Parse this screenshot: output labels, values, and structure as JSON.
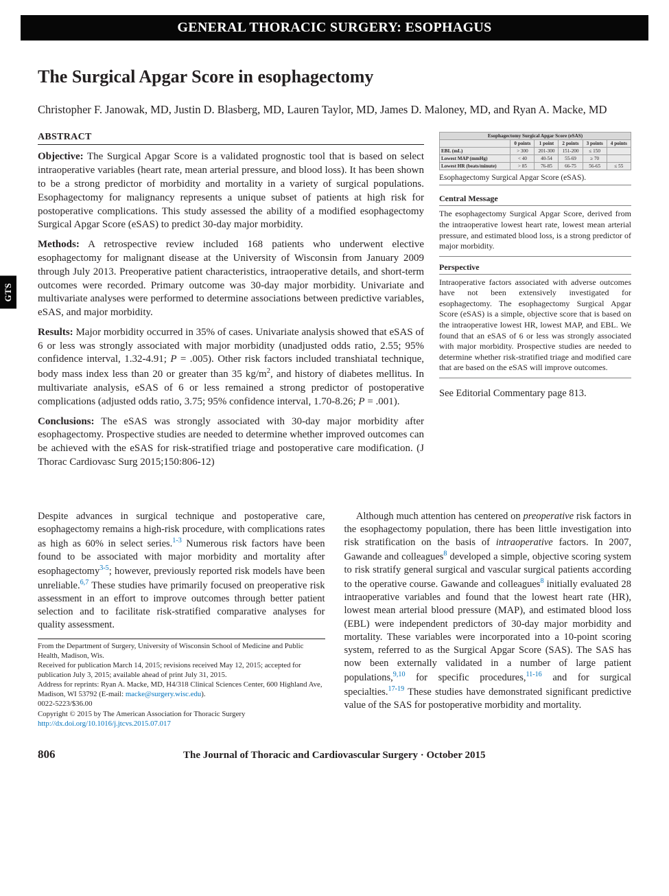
{
  "header": {
    "bar": "GENERAL THORACIC SURGERY: ESOPHAGUS",
    "side_tab": "GTS"
  },
  "title": "The Surgical Apgar Score in esophagectomy",
  "authors": "Christopher F. Janowak, MD, Justin D. Blasberg, MD, Lauren Taylor, MD, James D. Maloney, MD, and Ryan A. Macke, MD",
  "abstract": {
    "heading": "ABSTRACT",
    "objective_label": "Objective:",
    "objective": " The Surgical Apgar Score is a validated prognostic tool that is based on select intraoperative variables (heart rate, mean arterial pressure, and blood loss). It has been shown to be a strong predictor of morbidity and mortality in a variety of surgical populations. Esophagectomy for malignancy represents a unique subset of patients at high risk for postoperative complications. This study assessed the ability of a modified esophagectomy Surgical Apgar Score (eSAS) to predict 30-day major morbidity.",
    "methods_label": "Methods:",
    "methods": " A retrospective review included 168 patients who underwent elective esophagectomy for malignant disease at the University of Wisconsin from January 2009 through July 2013. Preoperative patient characteristics, intraoperative details, and short-term outcomes were recorded. Primary outcome was 30-day major morbidity. Univariate and multivariate analyses were performed to determine associations between predictive variables, eSAS, and major morbidity.",
    "results_label": "Results:",
    "results_a": " Major morbidity occurred in 35% of cases. Univariate analysis showed that eSAS of 6 or less was strongly associated with major morbidity (unadjusted odds ratio, 2.55; 95% confidence interval, 1.32-4.91; ",
    "results_p1": "P",
    "results_b": " = .005). Other risk factors included transhiatal technique, body mass index less than 20 or greater than 35 kg/m",
    "results_sup": "2",
    "results_c": ", and history of diabetes mellitus. In multivariate analysis, eSAS of 6 or less remained a strong predictor of postoperative complications (adjusted odds ratio, 3.75; 95% confidence interval, 1.70-8.26; ",
    "results_p2": "P",
    "results_d": " = .001).",
    "conclusions_label": "Conclusions:",
    "conclusions": " The eSAS was strongly associated with 30-day major morbidity after esophagectomy. Prospective studies are needed to determine whether improved outcomes can be achieved with the eSAS for risk-stratified triage and postoperative care modification. (J Thorac Cardiovasc Surg 2015;150:806-12)"
  },
  "esas_table": {
    "title": "Esophagectomy Surgical Apgar Score (eSAS)",
    "cols": [
      "",
      "0 points",
      "1 point",
      "2 points",
      "3 points",
      "4 points"
    ],
    "rows": [
      [
        "EBL (mL)",
        "> 300",
        "201-300",
        "151-200",
        "≤ 150",
        ""
      ],
      [
        "Lowest MAP (mmHg)",
        "< 40",
        "40-54",
        "55-69",
        "≥ 70",
        ""
      ],
      [
        "Lowest HR (beats/minute)",
        "> 85",
        "76-85",
        "66-75",
        "56-65",
        "≤ 55"
      ]
    ],
    "caption": "Esophagectomy Surgical Apgar Score (eSAS).",
    "header_bg": "#d8d8d8",
    "body_bg": "#e9e9e9",
    "border_color": "#a0a0a0"
  },
  "central_message": {
    "title": "Central Message",
    "body": "The esophagectomy Surgical Apgar Score, derived from the intraoperative lowest heart rate, lowest mean arterial pressure, and estimated blood loss, is a strong predictor of major morbidity."
  },
  "perspective": {
    "title": "Perspective",
    "body": "Intraoperative factors associated with adverse outcomes have not been extensively investigated for esophagectomy. The esophagectomy Surgical Apgar Score (eSAS) is a simple, objective score that is based on the intraoperative lowest HR, lowest MAP, and EBL. We found that an eSAS of 6 or less was strongly associated with major morbidity. Prospective studies are needed to determine whether risk-stratified triage and modified care that are based on the eSAS will improve outcomes."
  },
  "see_also": "See Editorial Commentary page 813.",
  "body_left": {
    "p1a": "Despite advances in surgical technique and postoperative care, esophagectomy remains a high-risk procedure, with complications rates as high as 60% in select series.",
    "ref1": "1-3",
    "p1b": " Numerous risk factors have been found to be associated with major morbidity and mortality after esophagectomy",
    "ref2": "3-5",
    "p1c": "; however, previously reported risk models have been unreliable.",
    "ref3": "6,7",
    "p1d": " These studies have primarily focused on preoperative risk assessment in an effort to improve outcomes through better patient selection and to facilitate risk-stratified comparative analyses for quality assessment."
  },
  "body_right": {
    "lead_indent": "    ",
    "p1a": "Although much attention has centered on ",
    "em1": "preoperative",
    "p1b": " risk factors in the esophagectomy population, there has been little investigation into risk stratification on the basis of ",
    "em2": "intraoperative",
    "p1c": " factors. In 2007, Gawande and colleagues",
    "ref4": "8",
    "p1d": " developed a simple, objective scoring system to risk stratify general surgical and vascular surgical patients according to the operative course. Gawande and colleagues",
    "ref5": "8",
    "p1e": " initially evaluated 28 intraoperative variables and found that the lowest heart rate (HR), lowest mean arterial blood pressure (MAP), and estimated blood loss (EBL) were independent predictors of 30-day major morbidity and mortality. These variables were incorporated into a 10-point scoring system, referred to as the Surgical Apgar Score (SAS). The SAS has now been externally validated in a number of large patient populations,",
    "ref6": "9,10",
    "p1f": " for specific procedures,",
    "ref7": "11-16",
    "p1g": " and for surgical specialties.",
    "ref8": "17-19",
    "p1h": " These studies have demonstrated significant predictive value of the SAS for postoperative morbidity and mortality."
  },
  "footnotes": {
    "l1": "From the Department of Surgery, University of Wisconsin School of Medicine and Public Health, Madison, Wis.",
    "l2": "Received for publication March 14, 2015; revisions received May 12, 2015; accepted for publication July 3, 2015; available ahead of print July 31, 2015.",
    "l3a": "Address for reprints: Ryan A. Macke, MD, H4/318 Clinical Sciences Center, 600 Highland Ave, Madison, WI 53792 (E-mail: ",
    "l3_email": "macke@surgery.wisc.edu",
    "l3b": ").",
    "l4": "0022-5223/$36.00",
    "l5": "Copyright © 2015 by The American Association for Thoracic Surgery",
    "l6": "http://dx.doi.org/10.1016/j.jtcvs.2015.07.017"
  },
  "footer": {
    "page": "806",
    "journal": "The Journal of Thoracic and Cardiovascular Surgery · October 2015"
  },
  "colors": {
    "link": "#0072bc",
    "text": "#231f20",
    "header_bg": "#070707"
  }
}
